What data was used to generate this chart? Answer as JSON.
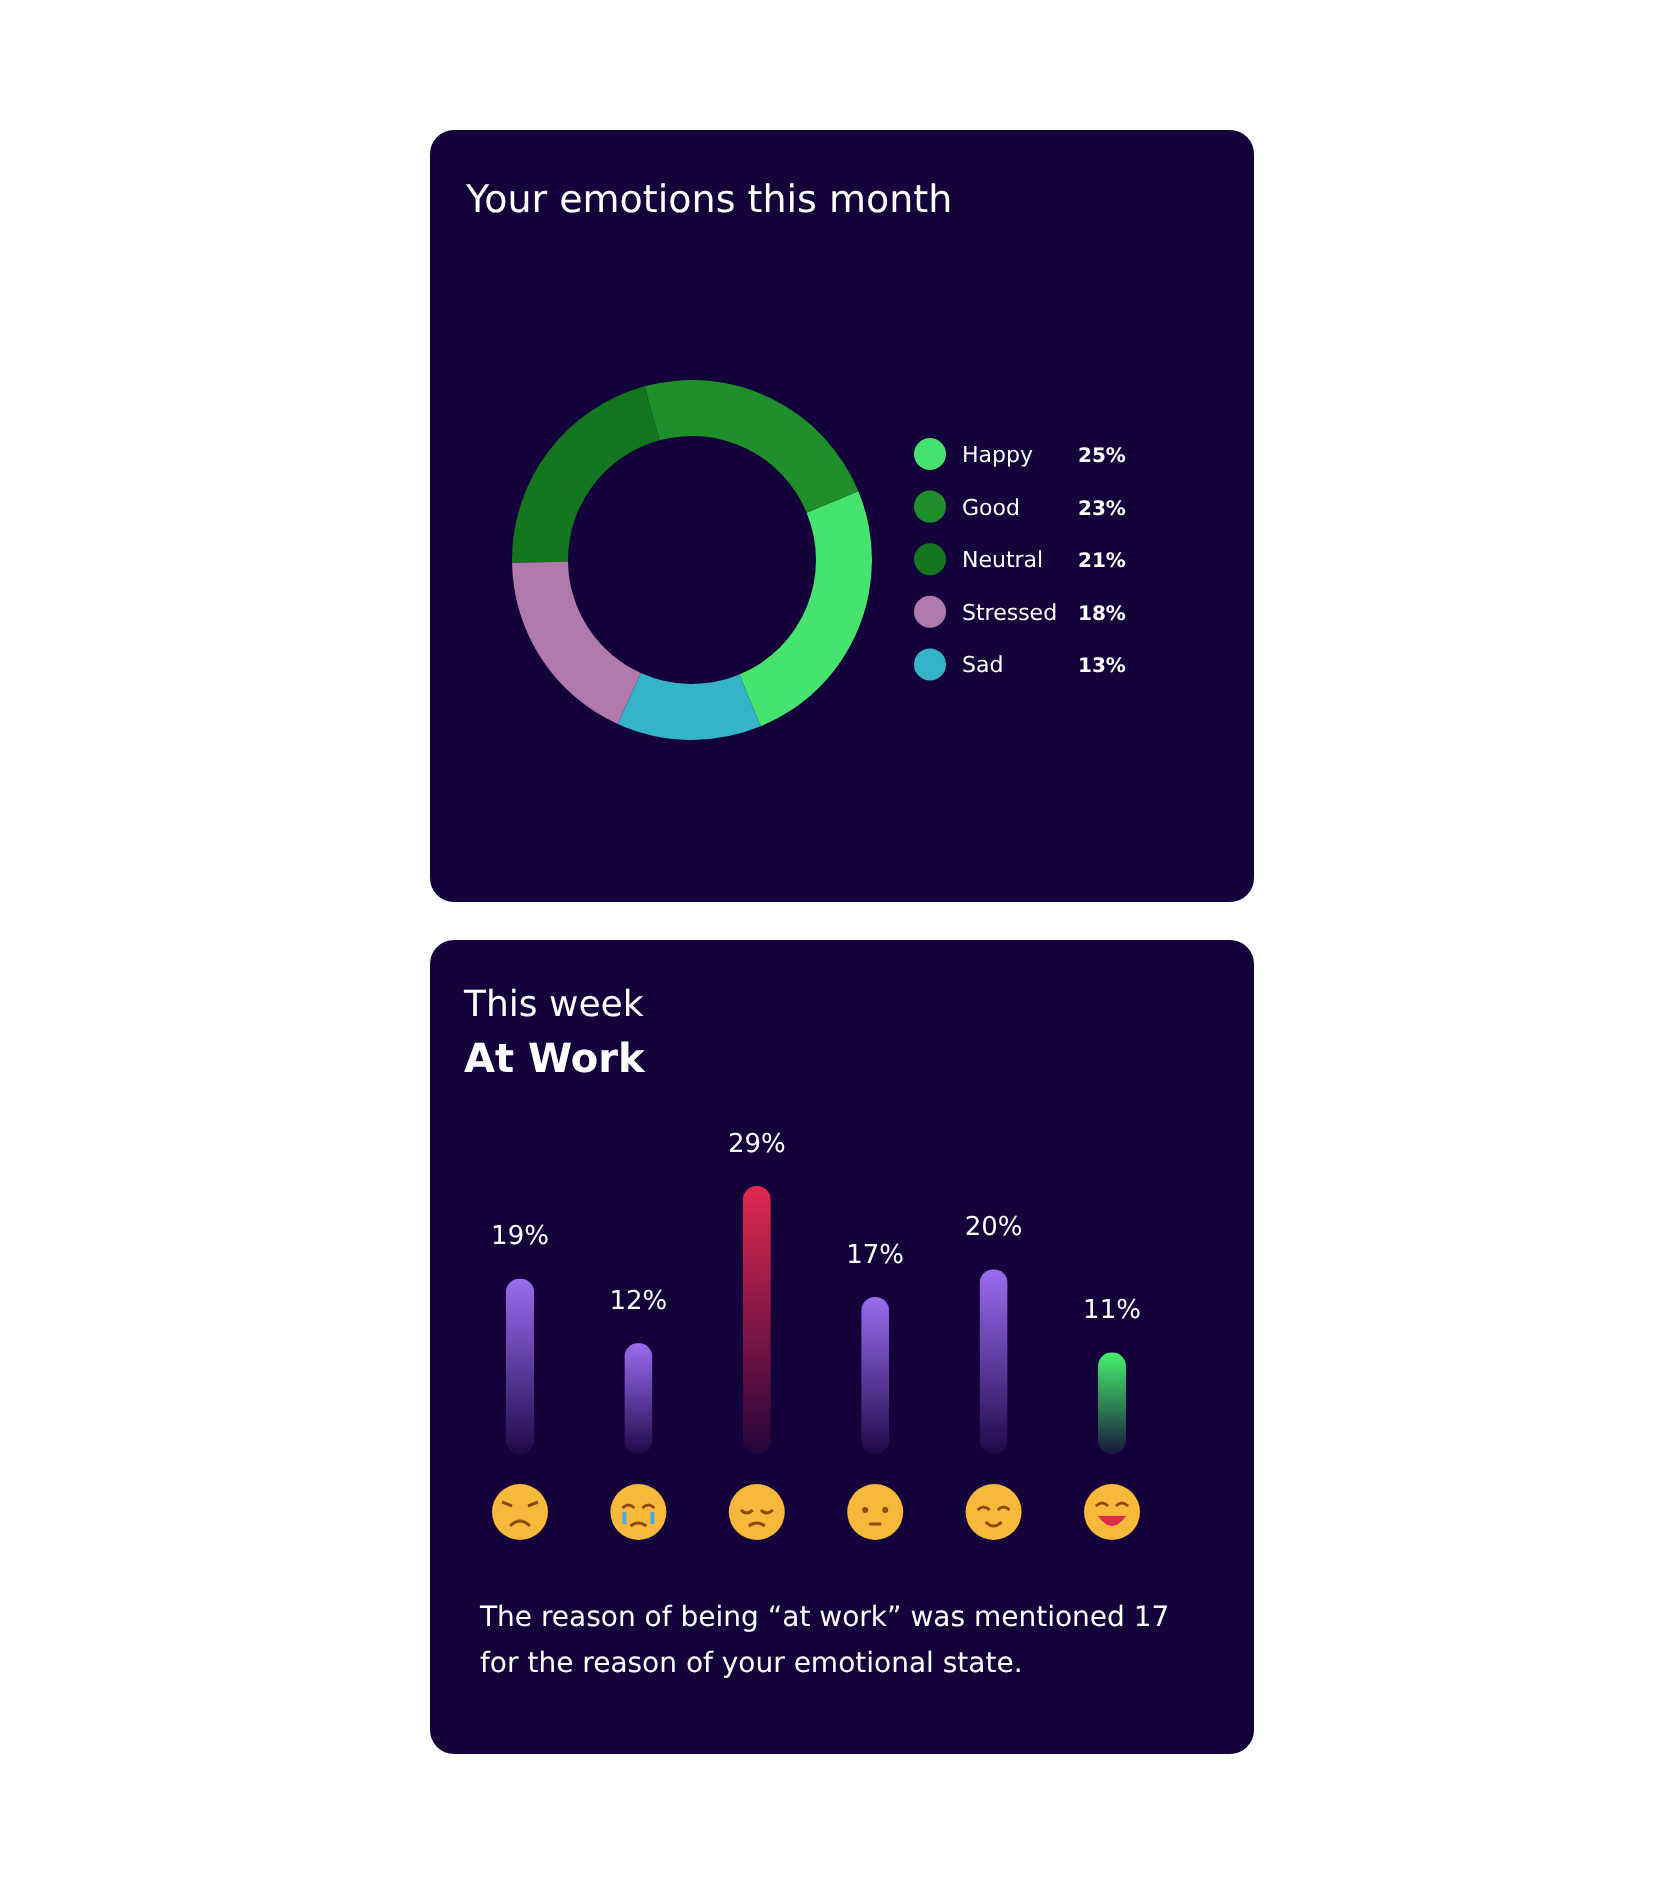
{
  "chart_data": [
    {
      "type": "donut",
      "title": "Your emotions this month",
      "categories": [
        "Happy",
        "Good",
        "Neutral",
        "Stressed",
        "Sad"
      ],
      "values": [
        25,
        23,
        21,
        18,
        13
      ],
      "colors": [
        "#46e46e",
        "#1e8f2a",
        "#14761e",
        "#b07aac",
        "#34b4c6"
      ],
      "legend": "right",
      "value_labels": [
        "25%",
        "23%",
        "21%",
        "18%",
        "13%"
      ]
    },
    {
      "type": "bar",
      "subtitle": "This week",
      "title": "At Work",
      "categories": [
        null,
        null,
        null,
        null,
        null,
        null
      ],
      "values": [
        19,
        12,
        29,
        17,
        20,
        11
      ],
      "colors": [
        "#9b6cf0",
        "#9b6cf0",
        "#e0294f",
        "#9b6cf0",
        "#9b6cf0",
        "#46f26a"
      ],
      "value_labels": [
        "19%",
        "12%",
        "29%",
        "17%",
        "20%",
        "11%"
      ],
      "annotations": [
        "The reason of being “at work” was mentioned 17 for the  reason of your emotional state."
      ]
    }
  ]
}
